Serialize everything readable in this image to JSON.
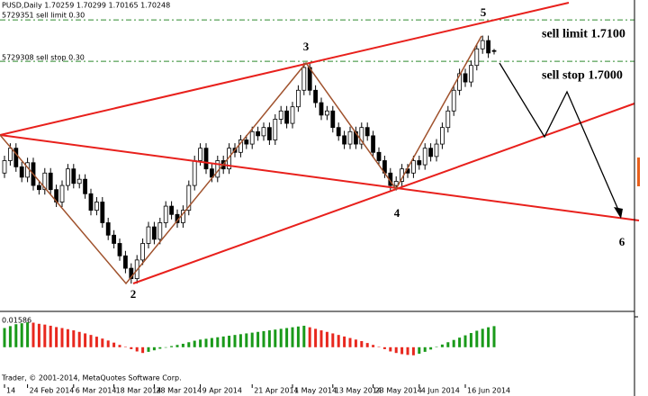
{
  "chart_data": {
    "type": "candlestick",
    "title": "PUSD,Daily  1.70259 1.70299 1.70165 1.70248",
    "orders": [
      "5729351 sell limit 0.30",
      "5729308 sell stop 0.30"
    ],
    "levels": [
      {
        "value": 1.71,
        "label": "sell limit 1.7100"
      },
      {
        "value": 1.7,
        "label": "sell stop 1.7000"
      }
    ],
    "level_color": "#2e8b2e",
    "wave_labels": [
      "2",
      "3",
      "4",
      "5",
      "6"
    ],
    "footer": "Trader, © 2001-2014, MetaQuotes Software Corp.",
    "categories": [
      "14",
      null,
      null,
      null,
      "24 Feb 2014",
      null,
      null,
      null,
      null,
      null,
      null,
      null,
      "6 Mar 2014",
      null,
      null,
      null,
      null,
      null,
      null,
      "18 Mar 2014",
      null,
      null,
      null,
      null,
      null,
      null,
      "28 Mar 2014",
      null,
      null,
      null,
      null,
      null,
      null,
      null,
      "9 Apr 2014",
      null,
      null,
      null,
      null,
      null,
      null,
      null,
      null,
      "21 Apr 2014",
      null,
      null,
      null,
      null,
      null,
      null,
      "1 May 2014",
      null,
      null,
      null,
      null,
      null,
      null,
      "13 May 2014",
      null,
      null,
      null,
      null,
      null,
      null,
      "23 May 2014",
      null,
      null,
      null,
      null,
      null,
      null,
      null,
      "4 Jun 2014",
      null,
      null,
      null,
      null,
      null,
      null,
      null,
      "16 Jun 2014",
      null,
      null,
      null,
      null,
      null
    ],
    "open": [
      1.673,
      1.676,
      1.679,
      1.6745,
      1.672,
      1.6755,
      1.67,
      1.669,
      1.673,
      1.669,
      1.666,
      1.67,
      1.674,
      1.6705,
      1.6715,
      1.668,
      1.664,
      1.666,
      1.661,
      1.658,
      1.656,
      1.653,
      1.65,
      1.6475,
      1.652,
      1.656,
      1.66,
      1.657,
      1.661,
      1.665,
      1.663,
      1.661,
      1.664,
      1.67,
      1.676,
      1.679,
      1.674,
      1.672,
      1.676,
      1.674,
      1.679,
      1.678,
      1.681,
      1.68,
      1.683,
      1.682,
      1.684,
      1.681,
      1.686,
      1.688,
      1.685,
      1.689,
      1.693,
      1.6985,
      1.693,
      1.69,
      1.687,
      1.688,
      1.684,
      1.682,
      1.68,
      1.683,
      1.68,
      1.684,
      1.682,
      1.678,
      1.676,
      1.673,
      1.67,
      1.671,
      1.674,
      1.673,
      1.676,
      1.675,
      1.679,
      1.677,
      1.68,
      1.684,
      1.688,
      1.693,
      1.697,
      1.695,
      1.699,
      1.703,
      1.705,
      1.70259
    ],
    "high": [
      1.6772,
      1.6802,
      1.6802,
      1.6757,
      1.6767,
      1.6767,
      1.6712,
      1.6742,
      1.6742,
      1.6702,
      1.6712,
      1.6752,
      1.6752,
      1.6727,
      1.6727,
      1.6692,
      1.6672,
      1.6672,
      1.6622,
      1.6592,
      1.6572,
      1.6542,
      1.6512,
      1.6532,
      1.6572,
      1.6612,
      1.6612,
      1.6622,
      1.6662,
      1.6662,
      1.6642,
      1.6652,
      1.6712,
      1.6772,
      1.6802,
      1.6802,
      1.6752,
      1.6772,
      1.6772,
      1.6802,
      1.6802,
      1.6822,
      1.6822,
      1.6842,
      1.6842,
      1.6852,
      1.6852,
      1.6872,
      1.6892,
      1.6892,
      1.6902,
      1.6942,
      1.6997,
      1.6997,
      1.6942,
      1.6912,
      1.6892,
      1.6892,
      1.6852,
      1.6832,
      1.6842,
      1.6842,
      1.6852,
      1.6852,
      1.6832,
      1.6792,
      1.6772,
      1.6742,
      1.6722,
      1.6752,
      1.6752,
      1.6772,
      1.6772,
      1.6802,
      1.6802,
      1.6812,
      1.6852,
      1.6892,
      1.6942,
      1.6982,
      1.6982,
      1.7002,
      1.7042,
      1.7062,
      1.7062,
      1.70299
    ],
    "low": [
      1.6718,
      1.6748,
      1.6733,
      1.6708,
      1.6708,
      1.6688,
      1.6678,
      1.6678,
      1.6678,
      1.6648,
      1.6648,
      1.6688,
      1.6693,
      1.6693,
      1.6668,
      1.6628,
      1.6628,
      1.6598,
      1.6568,
      1.6548,
      1.6518,
      1.6488,
      1.6463,
      1.6463,
      1.6508,
      1.6548,
      1.6558,
      1.6558,
      1.6598,
      1.6618,
      1.6598,
      1.6598,
      1.6628,
      1.6688,
      1.6748,
      1.6728,
      1.6708,
      1.6708,
      1.6728,
      1.6728,
      1.6768,
      1.6768,
      1.6788,
      1.6788,
      1.6808,
      1.6808,
      1.6798,
      1.6798,
      1.6848,
      1.6838,
      1.6838,
      1.6878,
      1.6918,
      1.6918,
      1.6888,
      1.6858,
      1.6858,
      1.6828,
      1.6808,
      1.6788,
      1.6788,
      1.6788,
      1.6788,
      1.6808,
      1.6768,
      1.6748,
      1.6718,
      1.6688,
      1.6688,
      1.6698,
      1.6718,
      1.6718,
      1.6738,
      1.6738,
      1.6758,
      1.6758,
      1.6788,
      1.6828,
      1.6868,
      1.6918,
      1.6938,
      1.6938,
      1.6978,
      1.7018,
      1.7008,
      1.70165
    ],
    "close": [
      1.676,
      1.679,
      1.6745,
      1.672,
      1.6755,
      1.67,
      1.669,
      1.673,
      1.669,
      1.666,
      1.67,
      1.674,
      1.6705,
      1.6715,
      1.668,
      1.664,
      1.666,
      1.661,
      1.658,
      1.656,
      1.653,
      1.65,
      1.6475,
      1.652,
      1.656,
      1.66,
      1.657,
      1.661,
      1.665,
      1.663,
      1.661,
      1.664,
      1.67,
      1.676,
      1.679,
      1.674,
      1.672,
      1.676,
      1.674,
      1.679,
      1.678,
      1.681,
      1.68,
      1.683,
      1.682,
      1.684,
      1.681,
      1.686,
      1.688,
      1.685,
      1.689,
      1.693,
      1.6985,
      1.693,
      1.69,
      1.687,
      1.688,
      1.684,
      1.682,
      1.68,
      1.683,
      1.68,
      1.684,
      1.682,
      1.678,
      1.676,
      1.673,
      1.67,
      1.671,
      1.674,
      1.673,
      1.676,
      1.675,
      1.679,
      1.677,
      1.68,
      1.684,
      1.688,
      1.693,
      1.697,
      1.695,
      1.699,
      1.703,
      1.705,
      1.702,
      1.70248
    ],
    "up_color": "#ffffff",
    "down_color": "#000000",
    "ylim": [
      1.6398,
      1.7148
    ],
    "indicator": {
      "type": "bar",
      "up_color": "#1a9a1a",
      "down_color": "#e8281e",
      "ylim": [
        -0.0198,
        0.01586
      ],
      "yticks": [
        0.01586
      ],
      "values": [
        0.01,
        0.011,
        0.012,
        0.0125,
        0.013,
        0.0128,
        0.0122,
        0.0118,
        0.0112,
        0.0105,
        0.01,
        0.0094,
        0.0088,
        0.008,
        0.0072,
        0.0064,
        0.0055,
        0.0045,
        0.0035,
        0.0024,
        0.0012,
        0.0002,
        -0.001,
        -0.0022,
        -0.003,
        -0.0024,
        -0.0016,
        -0.0008,
        -0.0002,
        0.0006,
        0.0012,
        0.0018,
        0.0026,
        0.0034,
        0.004,
        0.0044,
        0.0048,
        0.0052,
        0.0056,
        0.006,
        0.0064,
        0.0068,
        0.0072,
        0.0076,
        0.008,
        0.0084,
        0.0088,
        0.0092,
        0.0096,
        0.01,
        0.0104,
        0.0108,
        0.0112,
        0.0104,
        0.0096,
        0.0088,
        0.008,
        0.0072,
        0.0064,
        0.0056,
        0.0048,
        0.004,
        0.0032,
        0.0022,
        0.0012,
        0.0002,
        -0.001,
        -0.0022,
        -0.003,
        -0.0036,
        -0.004,
        -0.0042,
        -0.0034,
        -0.0024,
        -0.0012,
        0.0002,
        0.0014,
        0.0026,
        0.0038,
        0.005,
        0.0062,
        0.0074,
        0.0086,
        0.0096,
        0.0104,
        0.011
      ]
    }
  }
}
